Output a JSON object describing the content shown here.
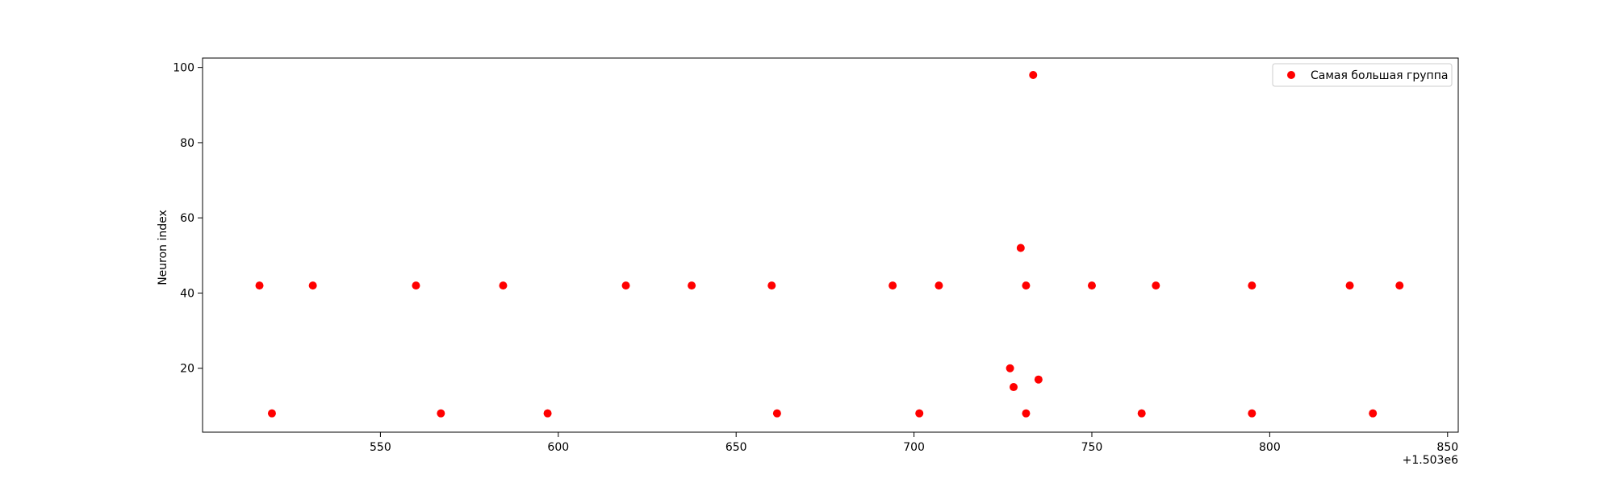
{
  "chart_data": {
    "type": "scatter",
    "title": "",
    "xlabel": "",
    "ylabel": "Neuron index",
    "x_offset_label": "+1.503e6",
    "x_offset": 1503000,
    "xlim": [
      1503500,
      1503853
    ],
    "ylim": [
      3,
      102.5
    ],
    "x_ticks": [
      550,
      600,
      650,
      700,
      750,
      800,
      850
    ],
    "x_tick_labels": [
      "550",
      "600",
      "650",
      "700",
      "750",
      "800",
      "850"
    ],
    "y_ticks": [
      20,
      40,
      60,
      80,
      100
    ],
    "y_tick_labels": [
      "20",
      "40",
      "60",
      "80",
      "100"
    ],
    "grid": false,
    "legend_position": "top-right",
    "series": [
      {
        "name": "Самая большая группа",
        "color": "#ff0000",
        "marker": "circle",
        "points": [
          {
            "x": 1503516,
            "y": 42
          },
          {
            "x": 1503531,
            "y": 42
          },
          {
            "x": 1503560,
            "y": 42
          },
          {
            "x": 1503584.5,
            "y": 42
          },
          {
            "x": 1503619,
            "y": 42
          },
          {
            "x": 1503637.5,
            "y": 42
          },
          {
            "x": 1503660,
            "y": 42
          },
          {
            "x": 1503694,
            "y": 42
          },
          {
            "x": 1503707,
            "y": 42
          },
          {
            "x": 1503731.5,
            "y": 42
          },
          {
            "x": 1503750,
            "y": 42
          },
          {
            "x": 1503768,
            "y": 42
          },
          {
            "x": 1503795,
            "y": 42
          },
          {
            "x": 1503822.5,
            "y": 42
          },
          {
            "x": 1503836.5,
            "y": 42
          },
          {
            "x": 1503519.5,
            "y": 8
          },
          {
            "x": 1503567,
            "y": 8
          },
          {
            "x": 1503597,
            "y": 8
          },
          {
            "x": 1503661.5,
            "y": 8
          },
          {
            "x": 1503701.5,
            "y": 8
          },
          {
            "x": 1503731.5,
            "y": 8
          },
          {
            "x": 1503764,
            "y": 8
          },
          {
            "x": 1503795,
            "y": 8
          },
          {
            "x": 1503829,
            "y": 8
          },
          {
            "x": 1503733.5,
            "y": 98
          },
          {
            "x": 1503730,
            "y": 52
          },
          {
            "x": 1503727,
            "y": 20
          },
          {
            "x": 1503728,
            "y": 15
          },
          {
            "x": 1503735,
            "y": 17
          }
        ]
      }
    ]
  }
}
